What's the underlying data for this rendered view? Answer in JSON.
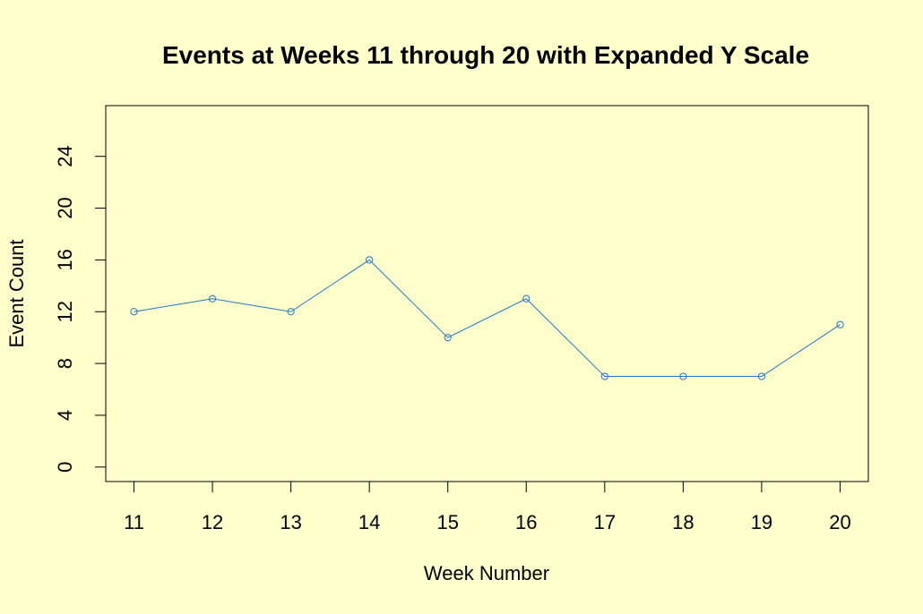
{
  "chart_data": {
    "type": "line",
    "title": "Events at Weeks 11 through 20 with Expanded Y Scale",
    "xlabel": "Week Number",
    "ylabel": "Event Count",
    "x": [
      11,
      12,
      13,
      14,
      15,
      16,
      17,
      18,
      19,
      20
    ],
    "series": [
      {
        "values": [
          12,
          13,
          12,
          16,
          10,
          13,
          7,
          7,
          7,
          11
        ]
      }
    ],
    "xticks": [
      11,
      12,
      13,
      14,
      15,
      16,
      17,
      18,
      19,
      20
    ],
    "yticks": [
      0,
      4,
      8,
      12,
      16,
      20,
      24
    ],
    "xlim": [
      10.64,
      20.36
    ],
    "ylim": [
      -1.12,
      27.92
    ],
    "marker": "open-circle",
    "grid": false,
    "colors": {
      "background": "#ffffcc",
      "line": "#1f78c8",
      "axis": "#000000"
    }
  }
}
